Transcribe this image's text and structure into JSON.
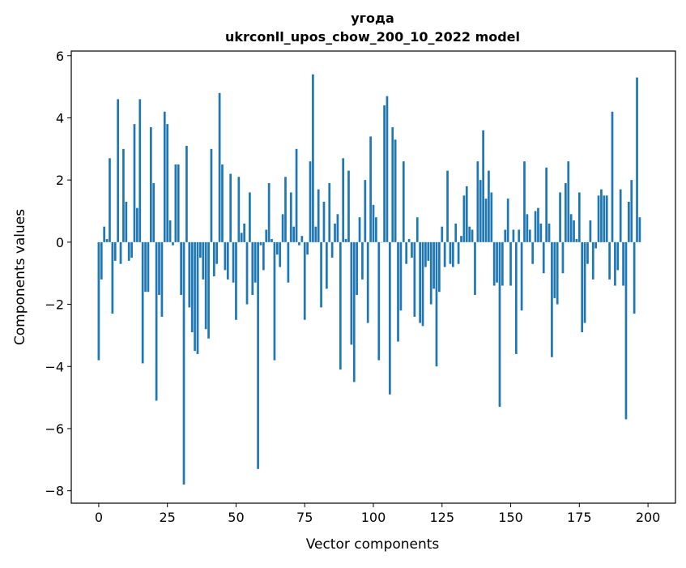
{
  "chart_data": {
    "type": "bar",
    "title_line1": "угода",
    "title_line2": "ukrconll_upos_cbow_200_10_2022 model",
    "xlabel": "Vector components",
    "ylabel": "Components values",
    "xlim": [
      -10,
      210
    ],
    "ylim": [
      -8.4,
      6.15
    ],
    "xticks": [
      0,
      25,
      50,
      75,
      100,
      125,
      150,
      175,
      200
    ],
    "yticks": [
      6,
      4,
      2,
      0,
      -2,
      -4,
      -6,
      -8
    ],
    "ytick_labels": [
      "6",
      "4",
      "2",
      "0",
      "−2",
      "−4",
      "−6",
      "−8"
    ],
    "bar_color": "#1f77b4",
    "grid": false,
    "values": [
      -3.8,
      -1.2,
      0.5,
      0.1,
      2.7,
      -2.3,
      -0.6,
      4.6,
      -0.7,
      3.0,
      1.3,
      -0.6,
      -0.5,
      3.8,
      1.1,
      4.6,
      -3.9,
      -1.6,
      -1.6,
      3.7,
      1.9,
      -5.1,
      -1.7,
      -2.4,
      4.2,
      3.8,
      0.7,
      -0.1,
      2.5,
      2.5,
      -1.7,
      -7.8,
      3.1,
      -2.1,
      -2.9,
      -3.5,
      -3.6,
      -0.5,
      -1.2,
      -2.8,
      -3.1,
      3.0,
      -1.1,
      -0.7,
      4.8,
      2.5,
      -0.9,
      -1.2,
      2.2,
      -1.3,
      -2.5,
      2.1,
      0.3,
      0.6,
      -2.0,
      1.6,
      -1.7,
      -1.3,
      -7.3,
      -0.1,
      -0.9,
      0.4,
      1.9,
      0.1,
      -3.8,
      -0.4,
      -0.8,
      0.9,
      2.1,
      -1.3,
      1.6,
      0.5,
      3.0,
      -0.1,
      0.2,
      -2.5,
      -0.4,
      2.6,
      5.4,
      0.5,
      1.7,
      -2.1,
      1.3,
      -1.5,
      1.9,
      -0.5,
      0.6,
      0.9,
      -4.1,
      2.7,
      0.1,
      2.3,
      -3.3,
      -4.5,
      -1.7,
      0.8,
      -1.2,
      2.0,
      -2.6,
      3.4,
      1.2,
      0.8,
      -3.8,
      0.0,
      4.4,
      4.7,
      -4.9,
      3.7,
      3.3,
      -3.2,
      -2.2,
      2.6,
      -0.7,
      0.1,
      -0.5,
      -2.4,
      0.8,
      -2.6,
      -2.7,
      -0.8,
      -0.6,
      -2.0,
      -1.5,
      -4.0,
      -1.6,
      0.5,
      -0.8,
      2.3,
      -0.7,
      -0.8,
      0.6,
      -0.7,
      0.2,
      1.5,
      1.8,
      0.5,
      0.4,
      -1.7,
      2.6,
      2.0,
      3.6,
      1.4,
      2.3,
      1.6,
      -1.4,
      -1.3,
      -5.3,
      -1.4,
      0.4,
      1.4,
      -1.4,
      0.4,
      -3.6,
      0.4,
      -2.2,
      2.6,
      0.9,
      0.4,
      -0.7,
      1.0,
      1.1,
      0.6,
      -1.0,
      2.4,
      0.6,
      -3.7,
      -1.8,
      -2.0,
      1.6,
      -1.0,
      1.9,
      2.6,
      0.9,
      0.7,
      0.1,
      1.6,
      -2.9,
      -2.6,
      -0.7,
      0.7,
      -1.2,
      -0.2,
      1.5,
      1.7,
      1.5,
      1.5,
      -1.2,
      4.2,
      -1.4,
      -0.9,
      1.7,
      -1.4,
      -5.7,
      1.3,
      2.0,
      -2.3,
      5.3,
      0.8
    ]
  }
}
